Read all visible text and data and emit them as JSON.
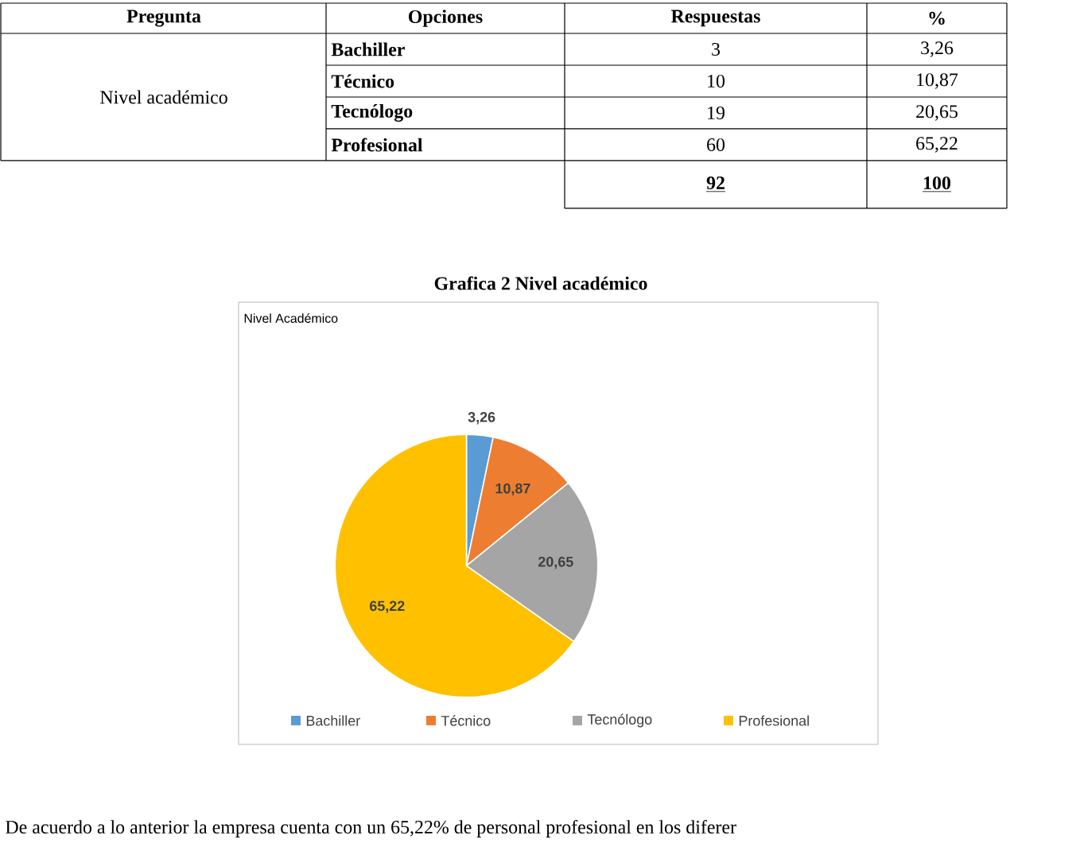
{
  "chart_data": {
    "type": "pie",
    "title": "Grafica 2 Nivel académico",
    "subtitle": "Nivel Académico",
    "categories": [
      "Bachiller",
      "Técnico",
      "Tecnólogo",
      "Profesional"
    ],
    "values": [
      3.26,
      10.87,
      20.65,
      65.22
    ],
    "colors": [
      "#5b9bd5",
      "#ed7d31",
      "#a5a5a5",
      "#ffc000"
    ],
    "value_labels": [
      "3,26",
      "10,87",
      "20,65",
      "65,22"
    ],
    "legend": "bottom",
    "annotations": [
      "Pregunta",
      "Opciones",
      "Respuestas",
      "%",
      "Nivel académico",
      "Bachiller",
      "3",
      "3,26",
      "Técnico",
      "10",
      "10,87",
      "Tecnólogo",
      "19",
      "20,65",
      "Profesional",
      "60",
      "65,22",
      "92",
      "100",
      "De acuerdo a lo anterior la empresa cuenta con un 65,22% de personal profesional en los diferer"
    ]
  }
}
